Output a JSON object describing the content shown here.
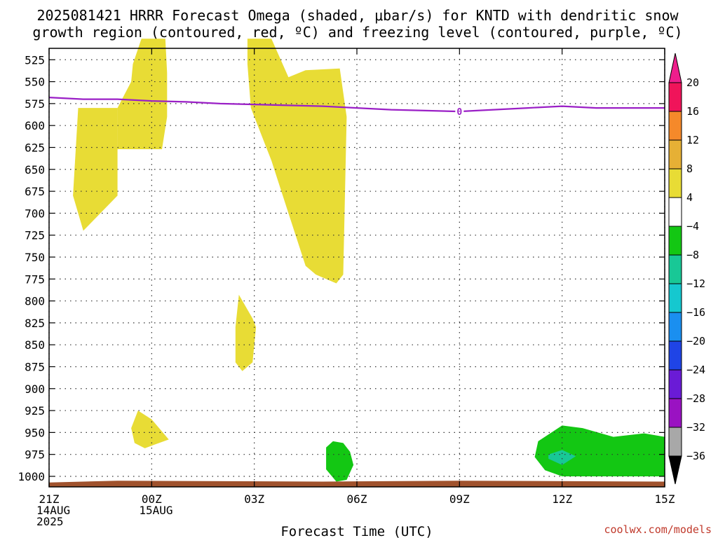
{
  "title_lines": [
    "2025081421 HRRR Forecast Omega (shaded, μbar/s) for KNTD with dendritic snow",
    "growth region (contoured, red, ºC) and freezing level (contoured, purple, ºC)"
  ],
  "credit": "coolwx.com/models",
  "chart_data": {
    "type": "contour",
    "xlabel": "Forecast Time (UTC)",
    "x_ticks": [
      {
        "hour": 0,
        "lines": [
          "21Z",
          "14AUG",
          "2025"
        ]
      },
      {
        "hour": 3,
        "lines": [
          "00Z",
          "15AUG"
        ]
      },
      {
        "hour": 6,
        "lines": [
          "03Z"
        ]
      },
      {
        "hour": 9,
        "lines": [
          "06Z"
        ]
      },
      {
        "hour": 12,
        "lines": [
          "09Z"
        ]
      },
      {
        "hour": 15,
        "lines": [
          "12Z"
        ]
      },
      {
        "hour": 18,
        "lines": [
          "15Z"
        ]
      }
    ],
    "xlim_hours": [
      0,
      18
    ],
    "y_ticks": [
      525,
      550,
      575,
      600,
      625,
      650,
      675,
      700,
      725,
      750,
      775,
      800,
      825,
      850,
      875,
      900,
      925,
      950,
      975,
      1000
    ],
    "ylim_hPa": [
      1012,
      512
    ],
    "grid": true,
    "colorbar": {
      "levels": [
        20,
        16,
        12,
        8,
        4,
        -4,
        -8,
        -12,
        -16,
        -20,
        -24,
        -28,
        -32,
        -36
      ],
      "colors": [
        "#f0145a",
        "#f5892a",
        "#e6b035",
        "#e8dc35",
        "#ffffff",
        "#13c713",
        "#18c896",
        "#15c8cf",
        "#1a8ff0",
        "#1f44e6",
        "#6a1bd6",
        "#9a12c2",
        "#a8a8a8"
      ],
      "top_arrow_color": "#ee1e8c",
      "bottom_arrow_color": "#000000"
    },
    "freezing_level": {
      "value_label": "0",
      "color": "#9a1fc6",
      "points": [
        [
          0,
          568
        ],
        [
          1,
          570
        ],
        [
          2,
          570
        ],
        [
          3,
          572
        ],
        [
          4,
          573
        ],
        [
          5,
          575
        ],
        [
          6,
          576
        ],
        [
          7,
          577
        ],
        [
          8,
          578
        ],
        [
          9,
          580
        ],
        [
          10,
          582
        ],
        [
          11,
          583
        ],
        [
          12,
          584
        ],
        [
          13,
          582
        ],
        [
          14,
          580
        ],
        [
          15,
          578
        ],
        [
          16,
          580
        ],
        [
          17,
          580
        ],
        [
          18,
          580
        ]
      ]
    },
    "omega_regions": [
      {
        "level": "4 to 8",
        "color": "#e8dc35",
        "points": [
          [
            2.7,
            501
          ],
          [
            3.4,
            501
          ],
          [
            3.45,
            540
          ],
          [
            3.45,
            590
          ],
          [
            3.3,
            627
          ],
          [
            2.8,
            627
          ],
          [
            2.5,
            627
          ],
          [
            2.0,
            627
          ],
          [
            2.0,
            580
          ],
          [
            2.2,
            565
          ],
          [
            2.4,
            550
          ],
          [
            2.45,
            530
          ],
          [
            2.7,
            501
          ]
        ]
      },
      {
        "level": "4 to 8",
        "color": "#e8dc35",
        "points": [
          [
            0.85,
            580
          ],
          [
            2.0,
            580
          ],
          [
            2.0,
            627
          ],
          [
            2.0,
            680
          ],
          [
            1.0,
            720
          ],
          [
            0.7,
            680
          ],
          [
            0.85,
            580
          ]
        ]
      },
      {
        "level": "4 to 8",
        "color": "#e8dc35",
        "points": [
          [
            5.8,
            501
          ],
          [
            6.5,
            501
          ],
          [
            7.0,
            545
          ],
          [
            7.5,
            537
          ],
          [
            8.5,
            535
          ],
          [
            8.7,
            590
          ],
          [
            8.6,
            770
          ],
          [
            8.4,
            780
          ],
          [
            7.8,
            770
          ],
          [
            7.5,
            760
          ],
          [
            7.0,
            700
          ],
          [
            6.5,
            640
          ],
          [
            5.9,
            580
          ],
          [
            5.8,
            530
          ],
          [
            5.8,
            501
          ]
        ]
      },
      {
        "level": "4 to 8",
        "color": "#e8dc35",
        "points": [
          [
            5.55,
            793
          ],
          [
            5.95,
            820
          ],
          [
            6.05,
            830
          ],
          [
            5.95,
            870
          ],
          [
            5.65,
            880
          ],
          [
            5.45,
            870
          ],
          [
            5.45,
            830
          ],
          [
            5.55,
            793
          ]
        ]
      },
      {
        "level": "4 to 8",
        "color": "#e8dc35",
        "points": [
          [
            2.4,
            945
          ],
          [
            2.6,
            925
          ],
          [
            3.0,
            935
          ],
          [
            3.5,
            958
          ],
          [
            3.0,
            965
          ],
          [
            2.8,
            968
          ],
          [
            2.5,
            962
          ],
          [
            2.4,
            945
          ]
        ]
      },
      {
        "level": "-4 to -8",
        "color": "#13c713",
        "points": [
          [
            8.1,
            967
          ],
          [
            8.3,
            960
          ],
          [
            8.6,
            962
          ],
          [
            8.8,
            972
          ],
          [
            8.9,
            987
          ],
          [
            8.7,
            1004
          ],
          [
            8.4,
            1006
          ],
          [
            8.1,
            992
          ],
          [
            8.1,
            967
          ]
        ]
      },
      {
        "level": "-4 to -8",
        "color": "#13c713",
        "points": [
          [
            15.0,
            942
          ],
          [
            15.6,
            945
          ],
          [
            16.5,
            955
          ],
          [
            17.4,
            951
          ],
          [
            18.0,
            955
          ],
          [
            18.0,
            1000
          ],
          [
            17.4,
            1000
          ],
          [
            16.0,
            1000
          ],
          [
            15.0,
            1000
          ],
          [
            14.5,
            993
          ],
          [
            14.2,
            978
          ],
          [
            14.3,
            960
          ],
          [
            15.0,
            942
          ]
        ]
      },
      {
        "level": "-8 to -12",
        "color": "#18c896",
        "points": [
          [
            14.6,
            975
          ],
          [
            15.0,
            970
          ],
          [
            15.4,
            977
          ],
          [
            15.0,
            987
          ],
          [
            14.6,
            980
          ],
          [
            14.6,
            975
          ]
        ]
      }
    ],
    "surface": {
      "color": "#a0522d",
      "points": [
        [
          0,
          1012
        ],
        [
          0,
          1007
        ],
        [
          2.0,
          1005
        ],
        [
          8.0,
          1006
        ],
        [
          12.0,
          1005
        ],
        [
          18.0,
          1006
        ],
        [
          18,
          1012
        ]
      ]
    }
  }
}
